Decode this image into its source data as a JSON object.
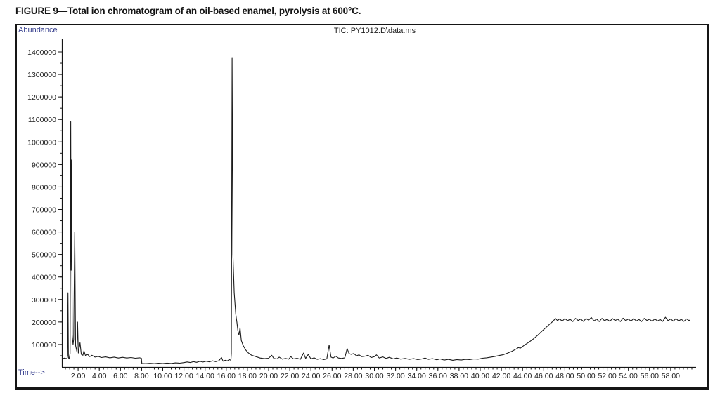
{
  "figure": {
    "caption": "FIGURE 9—Total ion chromatogram of an oil-based enamel, pyrolysis at 600°C."
  },
  "chart_data": {
    "type": "line",
    "title": "TIC: PY1012.D\\data.ms",
    "xlabel": "Time-->",
    "ylabel": "Abundance",
    "grid": false,
    "legend": "none",
    "colors": {
      "trace": "#1c1c1c",
      "axis": "#161616",
      "tick_text": "#1b1b1b",
      "accent_labels": "#39418f"
    },
    "x_axis": {
      "min": 0.5,
      "max": 60.0,
      "tick_start": 0.8,
      "minor_step": 0.4,
      "major_start": 2,
      "major_step": 2,
      "major_end": 58,
      "label_decimals": 2
    },
    "y_axis": {
      "min": 0,
      "max_display": 1450000,
      "major_min": 100000,
      "major_max": 1400000,
      "major_step": 100000,
      "minor_step": 50000
    },
    "series": [
      {
        "name": "TIC",
        "points": [
          [
            0.5,
            40000
          ],
          [
            0.62,
            38000
          ],
          [
            0.75,
            40000
          ],
          [
            0.88,
            37000
          ],
          [
            0.96,
            39000
          ],
          [
            1.0,
            52000
          ],
          [
            1.04,
            330000
          ],
          [
            1.08,
            42000
          ],
          [
            1.15,
            36000
          ],
          [
            1.24,
            60000
          ],
          [
            1.3,
            1090000
          ],
          [
            1.34,
            430000
          ],
          [
            1.39,
            920000
          ],
          [
            1.44,
            140000
          ],
          [
            1.52,
            100000
          ],
          [
            1.58,
            122000
          ],
          [
            1.68,
            600000
          ],
          [
            1.76,
            95000
          ],
          [
            1.88,
            70000
          ],
          [
            1.95,
            200000
          ],
          [
            2.02,
            62000
          ],
          [
            2.18,
            108000
          ],
          [
            2.3,
            56000
          ],
          [
            2.45,
            52000
          ],
          [
            2.55,
            72000
          ],
          [
            2.7,
            50000
          ],
          [
            2.9,
            56000
          ],
          [
            3.1,
            46000
          ],
          [
            3.3,
            52000
          ],
          [
            3.6,
            44000
          ],
          [
            3.9,
            47000
          ],
          [
            4.2,
            42000
          ],
          [
            4.6,
            45000
          ],
          [
            5.0,
            41000
          ],
          [
            5.4,
            44000
          ],
          [
            5.8,
            40000
          ],
          [
            6.2,
            43000
          ],
          [
            6.6,
            40000
          ],
          [
            7.0,
            42000
          ],
          [
            7.4,
            39000
          ],
          [
            7.8,
            41000
          ],
          [
            7.98,
            39000
          ],
          [
            8.02,
            16000
          ],
          [
            8.4,
            15000
          ],
          [
            8.8,
            16500
          ],
          [
            9.2,
            15000
          ],
          [
            9.6,
            17000
          ],
          [
            10.0,
            15500
          ],
          [
            10.4,
            17500
          ],
          [
            10.8,
            16000
          ],
          [
            11.2,
            18500
          ],
          [
            11.6,
            17000
          ],
          [
            12.0,
            19500
          ],
          [
            12.3,
            22500
          ],
          [
            12.6,
            20000
          ],
          [
            12.9,
            24000
          ],
          [
            13.2,
            21000
          ],
          [
            13.5,
            25500
          ],
          [
            13.8,
            22000
          ],
          [
            14.1,
            26000
          ],
          [
            14.4,
            23000
          ],
          [
            14.7,
            27500
          ],
          [
            15.0,
            24000
          ],
          [
            15.3,
            28000
          ],
          [
            15.55,
            42000
          ],
          [
            15.7,
            26000
          ],
          [
            15.9,
            30000
          ],
          [
            16.1,
            27000
          ],
          [
            16.28,
            33000
          ],
          [
            16.44,
            30000
          ],
          [
            16.48,
            60000
          ],
          [
            16.55,
            1375000
          ],
          [
            16.63,
            500000
          ],
          [
            16.75,
            330000
          ],
          [
            16.9,
            235000
          ],
          [
            17.0,
            200000
          ],
          [
            17.1,
            160000
          ],
          [
            17.2,
            142000
          ],
          [
            17.3,
            175000
          ],
          [
            17.42,
            118000
          ],
          [
            17.6,
            95000
          ],
          [
            17.85,
            75000
          ],
          [
            18.1,
            62000
          ],
          [
            18.4,
            52000
          ],
          [
            18.8,
            46000
          ],
          [
            19.2,
            40000
          ],
          [
            19.6,
            37000
          ],
          [
            20.0,
            39000
          ],
          [
            20.3,
            52000
          ],
          [
            20.5,
            38000
          ],
          [
            20.8,
            36000
          ],
          [
            21.0,
            44000
          ],
          [
            21.3,
            35000
          ],
          [
            21.6,
            38000
          ],
          [
            21.9,
            35000
          ],
          [
            22.1,
            46000
          ],
          [
            22.35,
            36000
          ],
          [
            22.7,
            39000
          ],
          [
            23.0,
            34000
          ],
          [
            23.3,
            62000
          ],
          [
            23.5,
            38000
          ],
          [
            23.75,
            56000
          ],
          [
            24.0,
            36000
          ],
          [
            24.3,
            41000
          ],
          [
            24.6,
            34000
          ],
          [
            24.9,
            37000
          ],
          [
            25.2,
            33000
          ],
          [
            25.5,
            36000
          ],
          [
            25.72,
            98000
          ],
          [
            25.9,
            44000
          ],
          [
            26.1,
            40000
          ],
          [
            26.35,
            48000
          ],
          [
            26.6,
            40000
          ],
          [
            26.9,
            38000
          ],
          [
            27.2,
            41000
          ],
          [
            27.42,
            82000
          ],
          [
            27.6,
            60000
          ],
          [
            27.8,
            56000
          ],
          [
            28.05,
            60000
          ],
          [
            28.3,
            50000
          ],
          [
            28.55,
            54000
          ],
          [
            28.8,
            46000
          ],
          [
            29.1,
            48000
          ],
          [
            29.4,
            52000
          ],
          [
            29.7,
            42000
          ],
          [
            30.0,
            46000
          ],
          [
            30.2,
            54000
          ],
          [
            30.45,
            40000
          ],
          [
            30.8,
            45000
          ],
          [
            31.1,
            38000
          ],
          [
            31.4,
            43000
          ],
          [
            31.8,
            36000
          ],
          [
            32.1,
            40000
          ],
          [
            32.5,
            35000
          ],
          [
            32.9,
            38000
          ],
          [
            33.3,
            34000
          ],
          [
            33.7,
            37000
          ],
          [
            34.1,
            33000
          ],
          [
            34.5,
            36000
          ],
          [
            34.8,
            40000
          ],
          [
            35.1,
            34000
          ],
          [
            35.5,
            37000
          ],
          [
            35.9,
            32000
          ],
          [
            36.2,
            36000
          ],
          [
            36.6,
            31000
          ],
          [
            37.0,
            34000
          ],
          [
            37.4,
            30000
          ],
          [
            37.8,
            33000
          ],
          [
            38.2,
            31000
          ],
          [
            38.6,
            34000
          ],
          [
            39.0,
            33000
          ],
          [
            39.4,
            36000
          ],
          [
            39.8,
            35000
          ],
          [
            40.2,
            39000
          ],
          [
            40.6,
            41000
          ],
          [
            41.0,
            44000
          ],
          [
            41.4,
            47000
          ],
          [
            41.8,
            51000
          ],
          [
            42.2,
            55000
          ],
          [
            42.6,
            62000
          ],
          [
            43.0,
            70000
          ],
          [
            43.4,
            80000
          ],
          [
            43.6,
            86000
          ],
          [
            43.8,
            84000
          ],
          [
            44.2,
            98000
          ],
          [
            44.6,
            110000
          ],
          [
            45.0,
            124000
          ],
          [
            45.4,
            140000
          ],
          [
            45.8,
            158000
          ],
          [
            46.2,
            175000
          ],
          [
            46.6,
            192000
          ],
          [
            46.9,
            204000
          ],
          [
            47.1,
            216000
          ],
          [
            47.3,
            206000
          ],
          [
            47.5,
            214000
          ],
          [
            47.75,
            204000
          ],
          [
            48.0,
            215000
          ],
          [
            48.25,
            206000
          ],
          [
            48.5,
            212000
          ],
          [
            48.75,
            202000
          ],
          [
            49.0,
            216000
          ],
          [
            49.25,
            207000
          ],
          [
            49.5,
            213000
          ],
          [
            49.75,
            203000
          ],
          [
            50.0,
            215000
          ],
          [
            50.25,
            208000
          ],
          [
            50.5,
            220000
          ],
          [
            50.75,
            205000
          ],
          [
            51.0,
            213000
          ],
          [
            51.25,
            202000
          ],
          [
            51.5,
            216000
          ],
          [
            51.75,
            206000
          ],
          [
            52.0,
            212000
          ],
          [
            52.25,
            203000
          ],
          [
            52.5,
            215000
          ],
          [
            52.75,
            207000
          ],
          [
            53.0,
            212000
          ],
          [
            53.25,
            202000
          ],
          [
            53.5,
            217000
          ],
          [
            53.75,
            206000
          ],
          [
            54.0,
            213000
          ],
          [
            54.25,
            204000
          ],
          [
            54.5,
            215000
          ],
          [
            54.75,
            205000
          ],
          [
            55.0,
            211000
          ],
          [
            55.25,
            202000
          ],
          [
            55.5,
            216000
          ],
          [
            55.75,
            207000
          ],
          [
            56.0,
            212000
          ],
          [
            56.25,
            203000
          ],
          [
            56.5,
            214000
          ],
          [
            56.75,
            205000
          ],
          [
            57.0,
            211000
          ],
          [
            57.25,
            203000
          ],
          [
            57.5,
            221000
          ],
          [
            57.75,
            206000
          ],
          [
            58.0,
            213000
          ],
          [
            58.25,
            204000
          ],
          [
            58.5,
            215000
          ],
          [
            58.75,
            205000
          ],
          [
            59.0,
            212000
          ],
          [
            59.25,
            203000
          ],
          [
            59.5,
            214000
          ],
          [
            59.75,
            206000
          ],
          [
            59.85,
            210000
          ]
        ]
      }
    ]
  }
}
